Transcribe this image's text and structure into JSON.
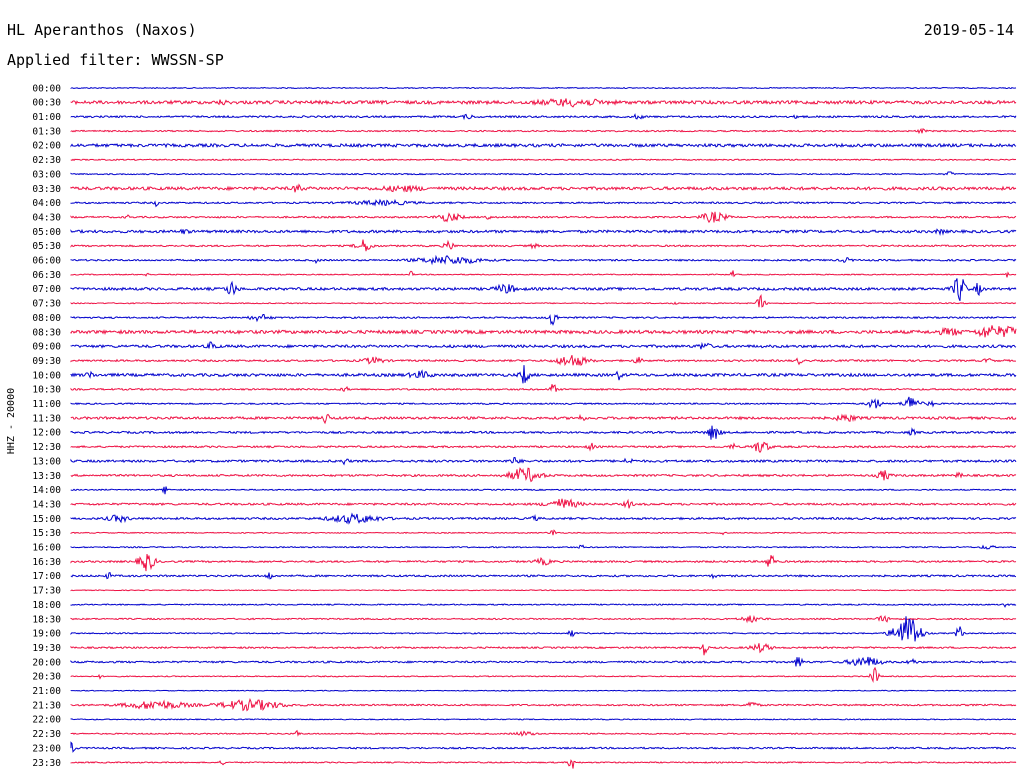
{
  "header": {
    "station_title": "HL Aperanthos (Naxos)",
    "date": "2019-05-14",
    "filter": "Applied filter: WWSSN-SP",
    "channel": "HHZ - 20000"
  },
  "chart_data": {
    "type": "helicorder",
    "row_interval_minutes": 30,
    "colors": {
      "even_row": "#0000cc",
      "odd_row": "#ee1144",
      "axis_text": "#000000"
    },
    "rows": [
      {
        "label": "00:00",
        "noise": 0.5,
        "events": []
      },
      {
        "label": "00:30",
        "noise": 1.6,
        "events": [
          [
            0.53,
            3,
            0.03
          ],
          [
            0.16,
            2,
            0.004
          ]
        ]
      },
      {
        "label": "01:00",
        "noise": 0.9,
        "events": [
          [
            0.42,
            2,
            0.005
          ],
          [
            0.6,
            2,
            0.005
          ],
          [
            0.77,
            2,
            0.004
          ]
        ]
      },
      {
        "label": "01:30",
        "noise": 0.7,
        "events": [
          [
            0.9,
            2,
            0.004
          ]
        ]
      },
      {
        "label": "02:00",
        "noise": 1.5,
        "events": []
      },
      {
        "label": "02:30",
        "noise": 0.6,
        "events": []
      },
      {
        "label": "03:00",
        "noise": 0.6,
        "events": [
          [
            0.93,
            2,
            0.004
          ]
        ]
      },
      {
        "label": "03:30",
        "noise": 1.5,
        "events": [
          [
            0.24,
            4,
            0.004
          ],
          [
            0.35,
            2,
            0.02
          ]
        ]
      },
      {
        "label": "04:00",
        "noise": 0.8,
        "events": [
          [
            0.09,
            3,
            0.002
          ],
          [
            0.33,
            2,
            0.03
          ]
        ]
      },
      {
        "label": "04:30",
        "noise": 0.8,
        "events": [
          [
            0.4,
            4,
            0.012
          ],
          [
            0.44,
            3,
            0.003
          ],
          [
            0.68,
            5,
            0.012
          ],
          [
            0.06,
            2,
            0.002
          ]
        ]
      },
      {
        "label": "05:00",
        "noise": 1.3,
        "events": [
          [
            0.12,
            2,
            0.004
          ],
          [
            0.92,
            2,
            0.004
          ]
        ]
      },
      {
        "label": "05:30",
        "noise": 0.8,
        "events": [
          [
            0.31,
            6,
            0.008
          ],
          [
            0.4,
            4,
            0.005
          ],
          [
            0.49,
            2,
            0.004
          ]
        ]
      },
      {
        "label": "06:00",
        "noise": 0.8,
        "events": [
          [
            0.4,
            4,
            0.03
          ],
          [
            0.26,
            2,
            0.003
          ],
          [
            0.82,
            2,
            0.005
          ]
        ]
      },
      {
        "label": "06:30",
        "noise": 0.5,
        "events": [
          [
            0.08,
            3,
            0.002
          ],
          [
            0.36,
            3,
            0.002
          ],
          [
            0.7,
            4,
            0.002
          ],
          [
            0.99,
            3,
            0.002
          ]
        ]
      },
      {
        "label": "07:00",
        "noise": 1.3,
        "events": [
          [
            0.17,
            7,
            0.005
          ],
          [
            0.46,
            4,
            0.01
          ],
          [
            0.94,
            13,
            0.006
          ],
          [
            0.96,
            6,
            0.003
          ]
        ]
      },
      {
        "label": "07:30",
        "noise": 0.5,
        "events": [
          [
            0.64,
            3,
            0.002
          ],
          [
            0.73,
            8,
            0.004
          ]
        ]
      },
      {
        "label": "08:00",
        "noise": 0.8,
        "events": [
          [
            0.51,
            8,
            0.004
          ],
          [
            0.2,
            3,
            0.01
          ]
        ]
      },
      {
        "label": "08:30",
        "noise": 1.6,
        "events": [
          [
            0.93,
            3,
            0.01
          ],
          [
            0.97,
            5,
            0.01
          ],
          [
            0.99,
            4,
            0.015
          ]
        ]
      },
      {
        "label": "09:00",
        "noise": 1.3,
        "events": [
          [
            0.15,
            5,
            0.004
          ],
          [
            0.67,
            3,
            0.006
          ]
        ]
      },
      {
        "label": "09:30",
        "noise": 0.9,
        "events": [
          [
            0.32,
            3,
            0.01
          ],
          [
            0.53,
            6,
            0.014
          ],
          [
            0.6,
            3,
            0.004
          ],
          [
            0.77,
            3,
            0.003
          ],
          [
            0.97,
            3,
            0.003
          ]
        ]
      },
      {
        "label": "10:00",
        "noise": 1.4,
        "events": [
          [
            0.02,
            4,
            0.003
          ],
          [
            0.48,
            10,
            0.004
          ],
          [
            0.58,
            4,
            0.003
          ],
          [
            0.37,
            3,
            0.01
          ]
        ]
      },
      {
        "label": "10:30",
        "noise": 0.8,
        "events": [
          [
            0.51,
            6,
            0.003
          ],
          [
            0.29,
            2,
            0.004
          ]
        ]
      },
      {
        "label": "11:00",
        "noise": 0.7,
        "events": [
          [
            0.85,
            6,
            0.006
          ],
          [
            0.89,
            8,
            0.008
          ],
          [
            0.91,
            3,
            0.003
          ]
        ]
      },
      {
        "label": "11:30",
        "noise": 1.2,
        "events": [
          [
            0.27,
            6,
            0.003
          ],
          [
            0.54,
            3,
            0.003
          ],
          [
            0.82,
            3,
            0.01
          ]
        ]
      },
      {
        "label": "12:00",
        "noise": 1.0,
        "events": [
          [
            0.68,
            8,
            0.006
          ],
          [
            0.89,
            3,
            0.003
          ]
        ]
      },
      {
        "label": "12:30",
        "noise": 0.9,
        "events": [
          [
            0.55,
            4,
            0.003
          ],
          [
            0.73,
            6,
            0.008
          ],
          [
            0.7,
            3,
            0.003
          ]
        ]
      },
      {
        "label": "13:00",
        "noise": 1.1,
        "events": [
          [
            0.29,
            3,
            0.003
          ],
          [
            0.47,
            3,
            0.005
          ],
          [
            0.59,
            3,
            0.004
          ]
        ]
      },
      {
        "label": "13:30",
        "noise": 1.0,
        "events": [
          [
            0.48,
            7,
            0.015
          ],
          [
            0.86,
            5,
            0.006
          ],
          [
            0.94,
            2,
            0.004
          ]
        ]
      },
      {
        "label": "14:00",
        "noise": 0.6,
        "events": [
          [
            0.1,
            4,
            0.003
          ]
        ]
      },
      {
        "label": "14:30",
        "noise": 1.0,
        "events": [
          [
            0.52,
            5,
            0.015
          ],
          [
            0.59,
            4,
            0.004
          ]
        ]
      },
      {
        "label": "15:00",
        "noise": 1.0,
        "events": [
          [
            0.05,
            3,
            0.01
          ],
          [
            0.3,
            4,
            0.025
          ],
          [
            0.49,
            2,
            0.004
          ]
        ]
      },
      {
        "label": "15:30",
        "noise": 0.5,
        "events": [
          [
            0.51,
            3,
            0.004
          ],
          [
            0.69,
            3,
            0.002
          ]
        ]
      },
      {
        "label": "16:00",
        "noise": 0.6,
        "events": [
          [
            0.54,
            3,
            0.002
          ],
          [
            0.97,
            2,
            0.006
          ]
        ]
      },
      {
        "label": "16:30",
        "noise": 0.9,
        "events": [
          [
            0.08,
            9,
            0.008
          ],
          [
            0.5,
            3,
            0.008
          ],
          [
            0.74,
            9,
            0.004
          ]
        ]
      },
      {
        "label": "17:00",
        "noise": 0.9,
        "events": [
          [
            0.04,
            3,
            0.003
          ],
          [
            0.21,
            4,
            0.003
          ],
          [
            0.68,
            3,
            0.002
          ]
        ]
      },
      {
        "label": "17:30",
        "noise": 0.4,
        "events": []
      },
      {
        "label": "18:00",
        "noise": 0.6,
        "events": [
          [
            0.99,
            3,
            0.003
          ]
        ]
      },
      {
        "label": "18:30",
        "noise": 0.7,
        "events": [
          [
            0.72,
            3,
            0.01
          ],
          [
            0.86,
            3,
            0.006
          ]
        ]
      },
      {
        "label": "19:00",
        "noise": 0.6,
        "events": [
          [
            0.53,
            4,
            0.003
          ],
          [
            0.88,
            10,
            0.012
          ],
          [
            0.89,
            12,
            0.01
          ],
          [
            0.94,
            9,
            0.003
          ]
        ]
      },
      {
        "label": "19:30",
        "noise": 0.8,
        "events": [
          [
            0.67,
            7,
            0.003
          ],
          [
            0.73,
            4,
            0.01
          ]
        ]
      },
      {
        "label": "20:00",
        "noise": 0.9,
        "events": [
          [
            0.77,
            9,
            0.003
          ],
          [
            0.84,
            5,
            0.015
          ],
          [
            0.89,
            3,
            0.004
          ]
        ]
      },
      {
        "label": "20:30",
        "noise": 0.5,
        "events": [
          [
            0.85,
            9,
            0.004
          ],
          [
            0.03,
            2,
            0.002
          ]
        ]
      },
      {
        "label": "21:00",
        "noise": 0.4,
        "events": []
      },
      {
        "label": "21:30",
        "noise": 0.8,
        "events": [
          [
            0.09,
            4,
            0.03
          ],
          [
            0.19,
            5,
            0.03
          ],
          [
            0.72,
            3,
            0.006
          ]
        ]
      },
      {
        "label": "22:00",
        "noise": 0.5,
        "events": []
      },
      {
        "label": "22:30",
        "noise": 0.6,
        "events": [
          [
            0.24,
            4,
            0.002
          ],
          [
            0.48,
            2,
            0.01
          ]
        ]
      },
      {
        "label": "23:00",
        "noise": 0.8,
        "events": [
          [
            0.0,
            5,
            0.004
          ]
        ]
      },
      {
        "label": "23:30",
        "noise": 0.6,
        "events": [
          [
            0.53,
            8,
            0.003
          ],
          [
            0.16,
            3,
            0.002
          ]
        ]
      }
    ]
  }
}
